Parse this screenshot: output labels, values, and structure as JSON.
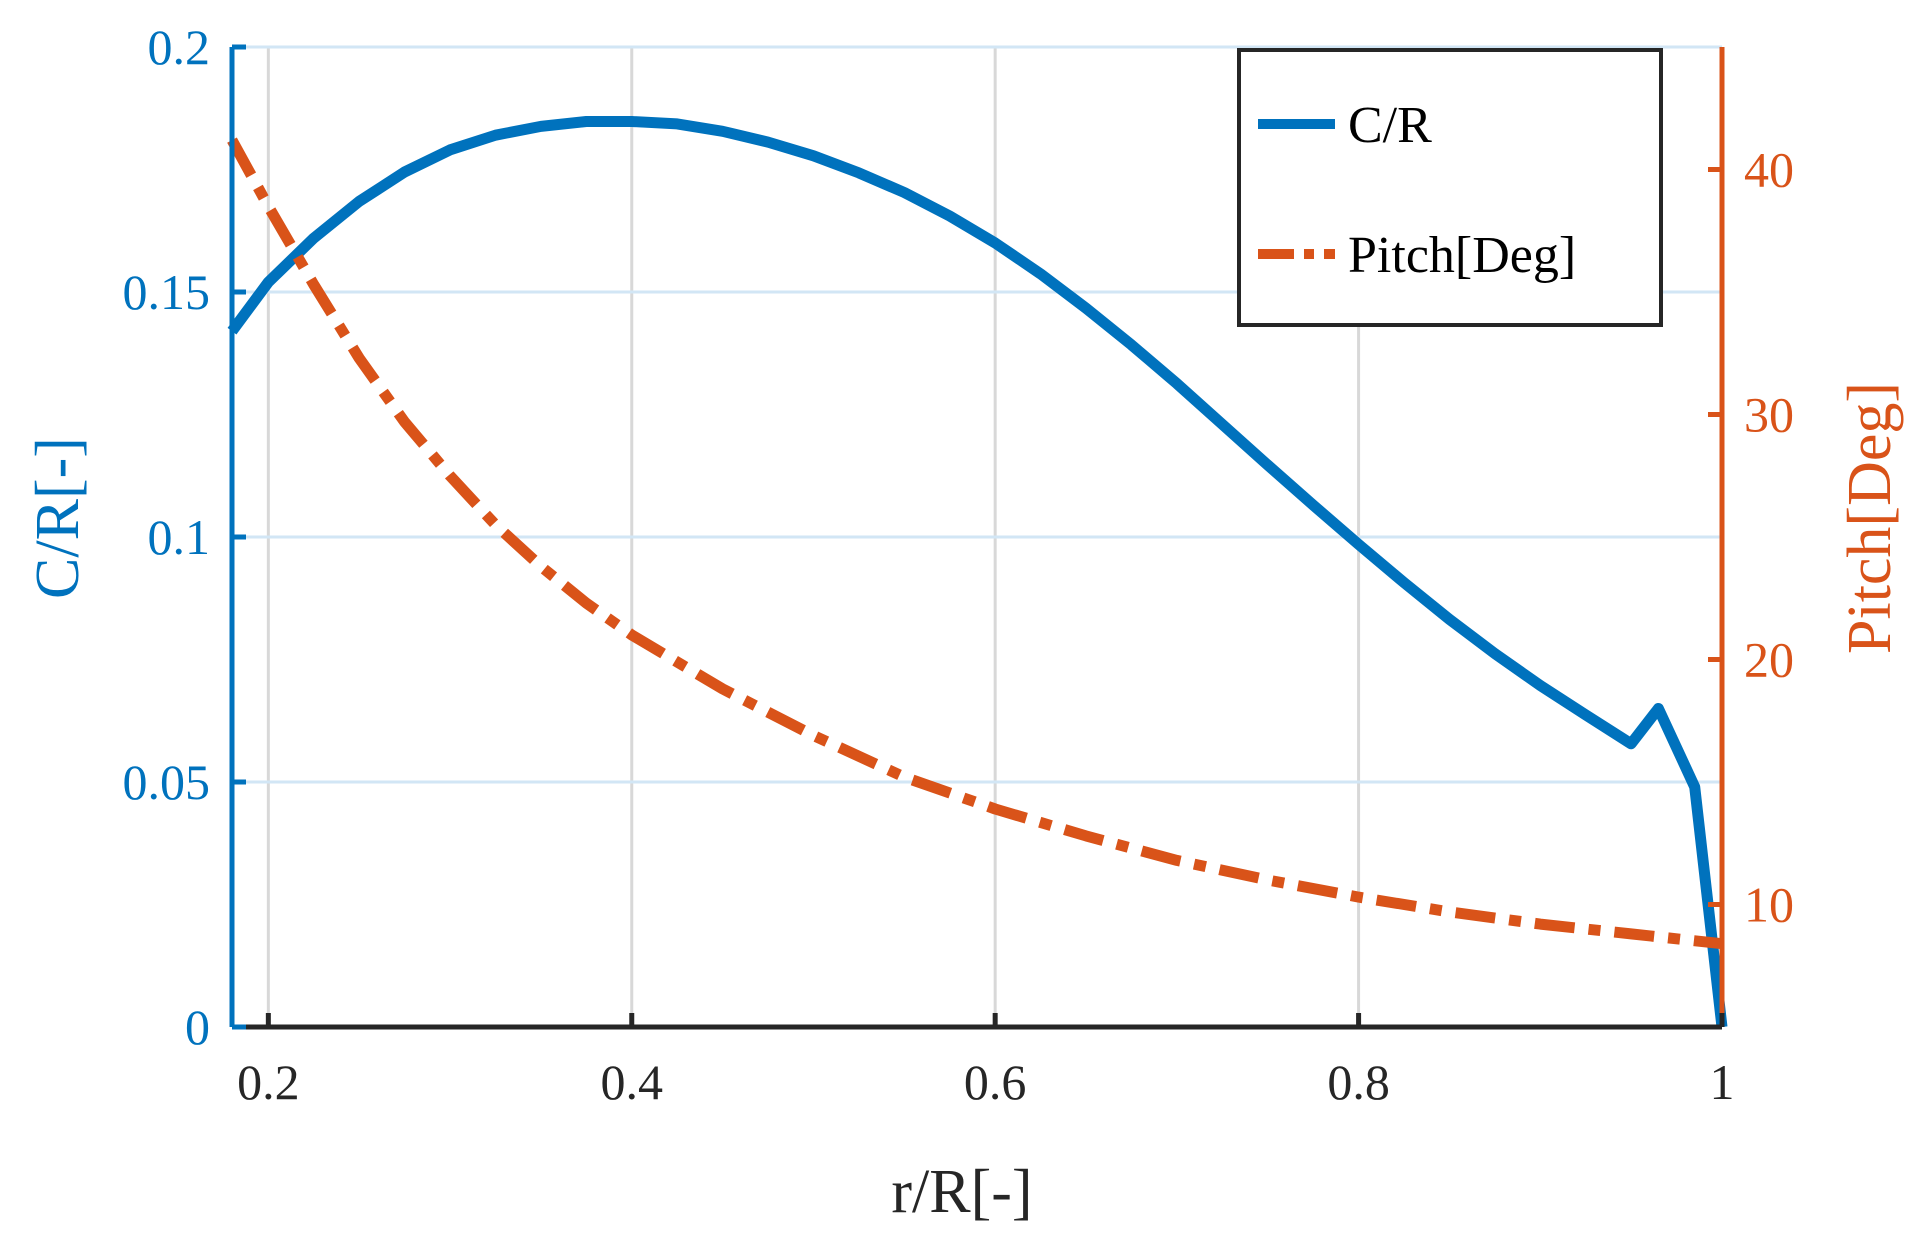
{
  "chart_data": {
    "type": "line",
    "title": "",
    "xlabel": "r/R[-]",
    "ylabel_left": "C/R[-]",
    "ylabel_right": "Pitch[Deg]",
    "xlim": [
      0.18,
      1.0
    ],
    "ylim_left": [
      0,
      0.2
    ],
    "ylim_right": [
      5,
      45
    ],
    "x_ticks": [
      0.2,
      0.4,
      0.6,
      0.8,
      1.0
    ],
    "x_tick_labels": [
      "0.2",
      "0.4",
      "0.6",
      "0.8",
      "1"
    ],
    "y_left_ticks": [
      0,
      0.05,
      0.1,
      0.15,
      0.2
    ],
    "y_left_tick_labels": [
      "0",
      "0.05",
      "0.1",
      "0.15",
      "0.2"
    ],
    "y_right_ticks": [
      10,
      20,
      30,
      40
    ],
    "y_right_tick_labels": [
      "10",
      "20",
      "30",
      "40"
    ],
    "grid": true,
    "legend_position": "top-right",
    "series": [
      {
        "name": "C/R",
        "axis": "left",
        "style": "solid",
        "color": "#0072BD",
        "x": [
          0.18,
          0.2,
          0.225,
          0.25,
          0.275,
          0.3,
          0.325,
          0.35,
          0.375,
          0.4,
          0.425,
          0.45,
          0.475,
          0.5,
          0.525,
          0.55,
          0.575,
          0.6,
          0.625,
          0.65,
          0.675,
          0.7,
          0.725,
          0.75,
          0.775,
          0.8,
          0.825,
          0.85,
          0.875,
          0.9,
          0.925,
          0.95,
          0.965,
          0.985,
          1.0
        ],
        "values": [
          0.142,
          0.152,
          0.161,
          0.1685,
          0.1745,
          0.179,
          0.182,
          0.1838,
          0.1848,
          0.1848,
          0.1843,
          0.1828,
          0.1806,
          0.1778,
          0.1743,
          0.1703,
          0.1655,
          0.16,
          0.1537,
          0.1467,
          0.1392,
          0.1313,
          0.123,
          0.1147,
          0.1065,
          0.0985,
          0.0907,
          0.0832,
          0.0762,
          0.0697,
          0.0637,
          0.0578,
          0.065,
          0.049,
          0.0
        ]
      },
      {
        "name": "Pitch[Deg]",
        "axis": "right",
        "style": "dashdot",
        "color": "#D95319",
        "x": [
          0.18,
          0.2,
          0.225,
          0.25,
          0.275,
          0.3,
          0.325,
          0.35,
          0.375,
          0.4,
          0.45,
          0.5,
          0.55,
          0.6,
          0.65,
          0.7,
          0.75,
          0.8,
          0.85,
          0.9,
          0.95,
          1.0
        ],
        "values": [
          41.2,
          38.5,
          35.3,
          32.3,
          29.7,
          27.5,
          25.5,
          23.8,
          22.3,
          21.0,
          18.8,
          16.9,
          15.2,
          13.9,
          12.8,
          11.8,
          11.0,
          10.3,
          9.7,
          9.2,
          8.8,
          8.4
        ]
      }
    ]
  }
}
